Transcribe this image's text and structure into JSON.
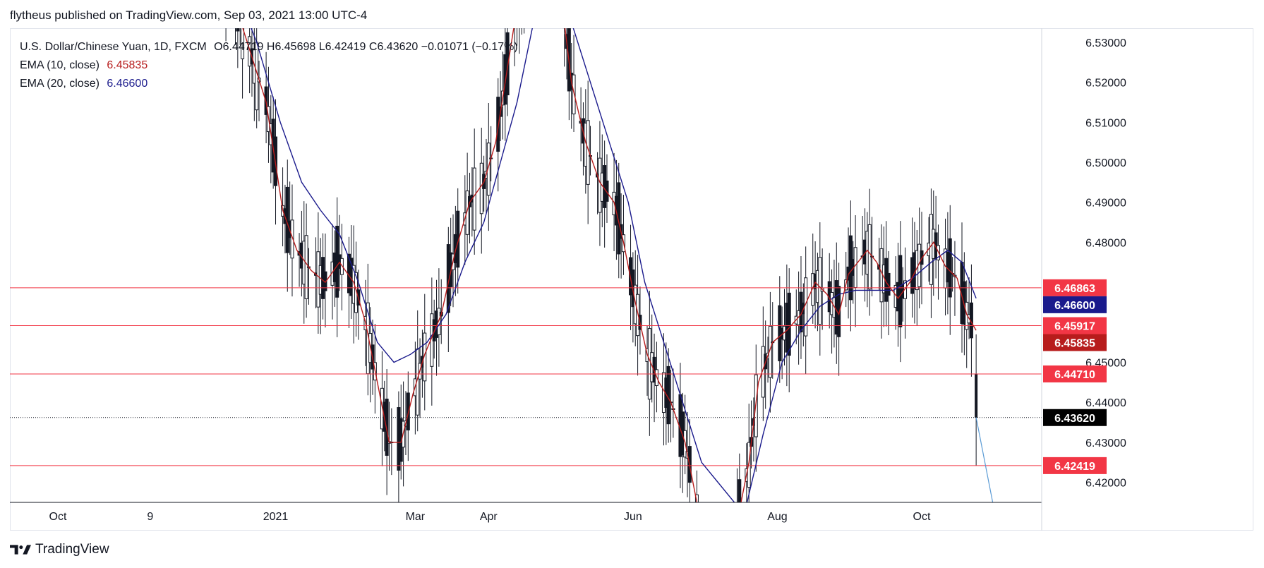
{
  "header": {
    "published": "flytheus published on TradingView.com, Sep 03, 2021 13:00 UTC-4"
  },
  "legend": {
    "symbol": "U.S. Dollar/Chinese Yuan, 1D, FXCM",
    "ohlc": "O6.44719  H6.45698  L6.42419  C6.43620  −0.01071 (−0.17%)",
    "ema10_label": "EMA (10, close)",
    "ema10_value": "6.45835",
    "ema20_label": "EMA (20, close)",
    "ema20_value": "6.46600"
  },
  "footer": {
    "brand": "TradingView"
  },
  "colors": {
    "ema10": "#b71c1c",
    "ema20": "#1a1a8c",
    "hline": "#f23645",
    "candle": "#131722",
    "projection": "#5b9bd5"
  },
  "chart_data": {
    "type": "candlestick",
    "title": "U.S. Dollar/Chinese Yuan, 1D, FXCM",
    "x_tick_labels": [
      "Oct",
      "9",
      "2021",
      "Mar",
      "Apr",
      "Jun",
      "Aug",
      "Oct"
    ],
    "x_tick_dates": [
      "2020-10-01",
      "2020-11-09",
      "2021-01-01",
      "2021-03-01",
      "2021-04-01",
      "2021-06-01",
      "2021-08-01",
      "2021-10-01"
    ],
    "ylim": [
      6.415,
      6.5335
    ],
    "y_ticks": [
      6.42,
      6.43,
      6.44,
      6.45,
      6.48,
      6.49,
      6.5,
      6.51,
      6.52,
      6.53
    ],
    "y_tick_labels": [
      "6.42000",
      "6.43000",
      "6.44000",
      "6.45000",
      "6.48000",
      "6.49000",
      "6.50000",
      "6.51000",
      "6.52000",
      "6.53000"
    ],
    "horizontal_levels": [
      {
        "value": 6.46863,
        "label": "6.46863"
      },
      {
        "value": 6.45917,
        "label": "6.45917"
      },
      {
        "value": 6.4471,
        "label": "6.44710"
      },
      {
        "value": 6.42419,
        "label": "6.42419"
      }
    ],
    "last_price": {
      "value": 6.4362,
      "label": "6.43620"
    },
    "price_badges": [
      {
        "value": 6.46863,
        "label": "6.46863",
        "color": "#f23645"
      },
      {
        "value": 6.466,
        "label": "6.46600",
        "color": "#1a1a8c"
      },
      {
        "value": 6.45917,
        "label": "6.45917",
        "color": "#f23645"
      },
      {
        "value": 6.45835,
        "label": "6.45835",
        "color": "#b71c1c"
      },
      {
        "value": 6.4471,
        "label": "6.44710",
        "color": "#f23645"
      },
      {
        "value": 6.4362,
        "label": "6.43620",
        "color": "#000000"
      },
      {
        "value": 6.42419,
        "label": "6.42419",
        "color": "#f23645"
      }
    ],
    "ema10": {
      "name": "EMA (10, close)",
      "points": [
        [
          "2020-12-05",
          6.56
        ],
        [
          "2020-12-12",
          6.545
        ],
        [
          "2020-12-20",
          6.53
        ],
        [
          "2020-12-28",
          6.515
        ],
        [
          "2021-01-04",
          6.488
        ],
        [
          "2021-01-10",
          6.478
        ],
        [
          "2021-01-16",
          6.473
        ],
        [
          "2021-01-22",
          6.47
        ],
        [
          "2021-01-28",
          6.475
        ],
        [
          "2021-02-03",
          6.47
        ],
        [
          "2021-02-08",
          6.46
        ],
        [
          "2021-02-13",
          6.445
        ],
        [
          "2021-02-18",
          6.43
        ],
        [
          "2021-02-23",
          6.43
        ],
        [
          "2021-02-28",
          6.442
        ],
        [
          "2021-03-05",
          6.452
        ],
        [
          "2021-03-12",
          6.462
        ],
        [
          "2021-03-18",
          6.478
        ],
        [
          "2021-03-24",
          6.49
        ],
        [
          "2021-03-30",
          6.495
        ],
        [
          "2021-04-04",
          6.505
        ],
        [
          "2021-04-08",
          6.52
        ],
        [
          "2021-04-12",
          6.535
        ],
        [
          "2021-04-18",
          6.55
        ],
        [
          "2021-05-01",
          6.545
        ],
        [
          "2021-05-06",
          6.52
        ],
        [
          "2021-05-12",
          6.505
        ],
        [
          "2021-05-18",
          6.495
        ],
        [
          "2021-05-24",
          6.49
        ],
        [
          "2021-05-28",
          6.48
        ],
        [
          "2021-06-02",
          6.465
        ],
        [
          "2021-06-07",
          6.452
        ],
        [
          "2021-06-12",
          6.445
        ],
        [
          "2021-06-17",
          6.44
        ],
        [
          "2021-06-23",
          6.43
        ],
        [
          "2021-06-28",
          6.415
        ],
        [
          "2021-07-15",
          6.41
        ],
        [
          "2021-07-20",
          6.425
        ],
        [
          "2021-07-24",
          6.445
        ],
        [
          "2021-07-30",
          6.455
        ],
        [
          "2021-08-05",
          6.458
        ],
        [
          "2021-08-11",
          6.462
        ],
        [
          "2021-08-17",
          6.47
        ],
        [
          "2021-08-22",
          6.467
        ],
        [
          "2021-08-27",
          6.462
        ],
        [
          "2021-08-31",
          6.472
        ],
        [
          "2021-09-04",
          6.475
        ],
        [
          "2021-09-08",
          6.478
        ],
        [
          "2021-09-12",
          6.475
        ],
        [
          "2021-09-16",
          6.47
        ],
        [
          "2021-09-21",
          6.466
        ],
        [
          "2021-09-26",
          6.47
        ],
        [
          "2021-10-01",
          6.476
        ],
        [
          "2021-10-06",
          6.48
        ],
        [
          "2021-10-11",
          6.474
        ],
        [
          "2021-10-16",
          6.471
        ],
        [
          "2021-10-20",
          6.462
        ],
        [
          "2021-10-24",
          6.458
        ]
      ]
    },
    "ema20": {
      "name": "EMA (20, close)",
      "points": [
        [
          "2020-12-05",
          6.56
        ],
        [
          "2020-12-14",
          6.545
        ],
        [
          "2020-12-24",
          6.53
        ],
        [
          "2021-01-03",
          6.51
        ],
        [
          "2021-01-12",
          6.495
        ],
        [
          "2021-01-20",
          6.488
        ],
        [
          "2021-01-28",
          6.482
        ],
        [
          "2021-02-05",
          6.47
        ],
        [
          "2021-02-13",
          6.455
        ],
        [
          "2021-02-20",
          6.45
        ],
        [
          "2021-02-27",
          6.452
        ],
        [
          "2021-03-06",
          6.455
        ],
        [
          "2021-03-14",
          6.462
        ],
        [
          "2021-03-22",
          6.475
        ],
        [
          "2021-03-30",
          6.485
        ],
        [
          "2021-04-06",
          6.5
        ],
        [
          "2021-04-13",
          6.515
        ],
        [
          "2021-04-20",
          6.535
        ],
        [
          "2021-05-06",
          6.535
        ],
        [
          "2021-05-14",
          6.52
        ],
        [
          "2021-05-22",
          6.505
        ],
        [
          "2021-05-30",
          6.49
        ],
        [
          "2021-06-06",
          6.47
        ],
        [
          "2021-06-14",
          6.455
        ],
        [
          "2021-06-22",
          6.44
        ],
        [
          "2021-06-30",
          6.425
        ],
        [
          "2021-07-18",
          6.412
        ],
        [
          "2021-07-26",
          6.432
        ],
        [
          "2021-08-03",
          6.45
        ],
        [
          "2021-08-11",
          6.458
        ],
        [
          "2021-08-19",
          6.464
        ],
        [
          "2021-08-27",
          6.467
        ],
        [
          "2021-09-03",
          6.468
        ],
        [
          "2021-09-11",
          6.468
        ],
        [
          "2021-09-19",
          6.468
        ],
        [
          "2021-09-27",
          6.471
        ],
        [
          "2021-10-05",
          6.475
        ],
        [
          "2021-10-12",
          6.478
        ],
        [
          "2021-10-18",
          6.475
        ],
        [
          "2021-10-24",
          6.466
        ]
      ]
    },
    "projection": {
      "from": [
        "2021-10-24",
        6.4362
      ],
      "to": [
        "2021-10-31",
        6.415
      ]
    }
  }
}
